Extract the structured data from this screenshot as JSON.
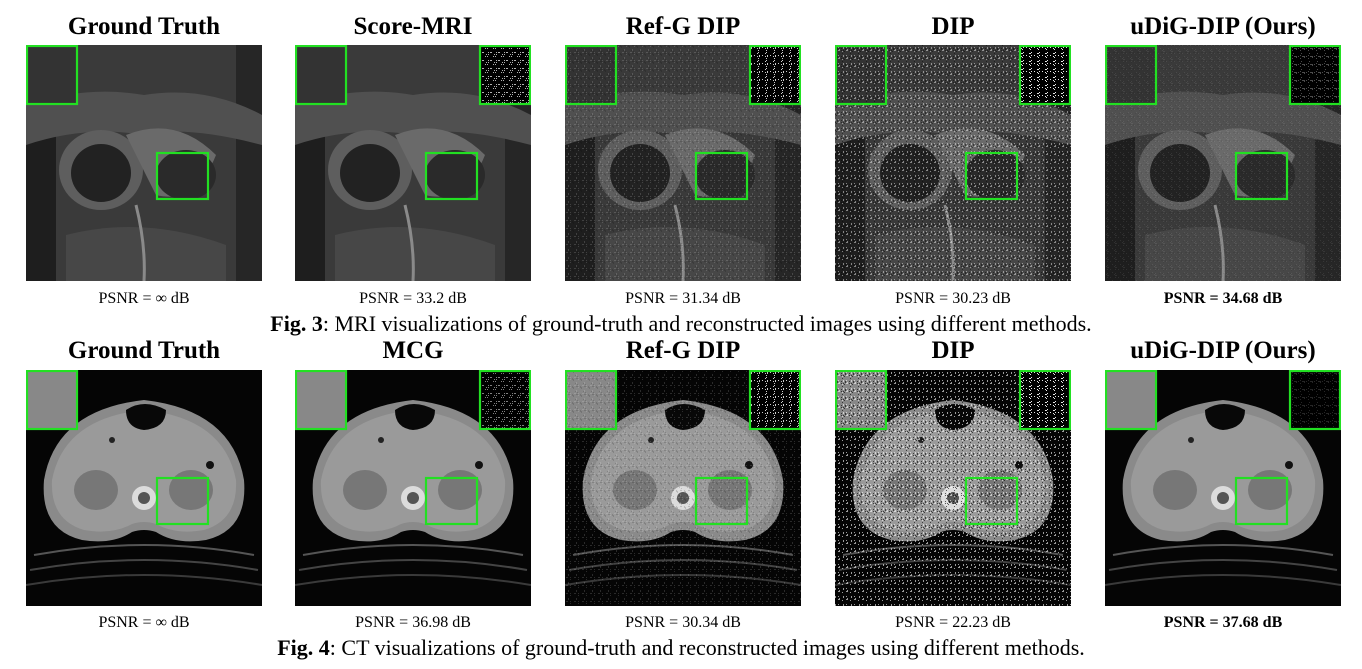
{
  "fig3": {
    "columns": [
      {
        "title": "Ground Truth",
        "psnr": "PSNR = ∞ dB",
        "best": false,
        "residual_level": 0.0
      },
      {
        "title": "Score-MRI",
        "psnr": "PSNR = 33.2 dB",
        "best": false,
        "residual_level": 0.7
      },
      {
        "title": "Ref-G DIP",
        "psnr": "PSNR = 31.34 dB",
        "best": false,
        "residual_level": 0.8
      },
      {
        "title": "DIP",
        "psnr": "PSNR = 30.23 dB",
        "best": false,
        "residual_level": 0.9
      },
      {
        "title": "uDiG-DIP (Ours)",
        "psnr": "PSNR = 34.68 dB",
        "best": true,
        "residual_level": 0.3
      }
    ],
    "caption_label": "Fig. 3",
    "caption_text": ": MRI visualizations of ground-truth and reconstructed images using different methods."
  },
  "fig4": {
    "columns": [
      {
        "title": "Ground Truth",
        "psnr": "PSNR = ∞ dB",
        "best": false,
        "residual_level": 0.0
      },
      {
        "title": "MCG",
        "psnr": "PSNR = 36.98 dB",
        "best": false,
        "residual_level": 0.5
      },
      {
        "title": "Ref-G DIP",
        "psnr": "PSNR = 30.34 dB",
        "best": false,
        "residual_level": 0.8
      },
      {
        "title": "DIP",
        "psnr": "PSNR = 22.23 dB",
        "best": false,
        "residual_level": 0.9
      },
      {
        "title": "uDiG-DIP (Ours)",
        "psnr": "PSNR = 37.68 dB",
        "best": true,
        "residual_level": 0.15
      }
    ],
    "caption_label": "Fig. 4",
    "caption_text": ": CT visualizations of ground-truth and reconstructed images using different methods."
  },
  "colors": {
    "inset_box": "#22e022"
  }
}
